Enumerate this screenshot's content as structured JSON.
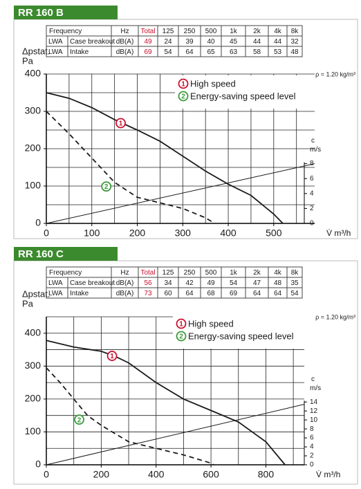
{
  "chart_data": [
    {
      "type": "line",
      "title": "RR 160 B",
      "y_label": "Δpstat.",
      "y_unit": "Pa",
      "x_label": "V̇ m³/h",
      "y2_label": "c",
      "y2_unit": "m/s",
      "annotation": "ρ = 1.20 kg/m³",
      "xlim": [
        0,
        590
      ],
      "xticks": [
        0,
        100,
        200,
        300,
        400,
        500
      ],
      "ylim": [
        0,
        400
      ],
      "yticks": [
        0,
        100,
        200,
        300,
        400
      ],
      "y2lim": [
        0,
        20
      ],
      "y2ticks": [
        0,
        2,
        4,
        6,
        8
      ],
      "grid": true,
      "series": [
        {
          "name": "High speed",
          "marker": "1",
          "marker_color": "#c8102e",
          "color": "#1a1a1a",
          "dash": false,
          "x": [
            0,
            50,
            100,
            150,
            200,
            250,
            300,
            350,
            400,
            450,
            500,
            520
          ],
          "values": [
            350,
            335,
            310,
            278,
            250,
            220,
            180,
            140,
            105,
            75,
            25,
            0
          ]
        },
        {
          "name": "Energy-saving speed level",
          "marker": "2",
          "marker_color": "#3a9a3a",
          "color": "#1a1a1a",
          "dash": true,
          "x": [
            0,
            50,
            100,
            150,
            200,
            250,
            300,
            350,
            370
          ],
          "values": [
            300,
            240,
            175,
            110,
            70,
            55,
            40,
            15,
            0
          ]
        },
        {
          "axis": "y2",
          "color": "#1a1a1a",
          "dash": false,
          "x": [
            0,
            590
          ],
          "values": [
            0,
            8
          ]
        }
      ]
    },
    {
      "type": "line",
      "title": "RR 160 C",
      "y_label": "Δpstat.",
      "y_unit": "Pa",
      "x_label": "V̇ m³/h",
      "y2_label": "c",
      "y2_unit": "m/s",
      "annotation": "ρ = 1.20 kg/m³",
      "xlim": [
        0,
        940
      ],
      "xticks": [
        0,
        200,
        400,
        600,
        800
      ],
      "ylim": [
        0,
        450
      ],
      "yticks": [
        0,
        100,
        200,
        300,
        400
      ],
      "y2lim": [
        0,
        33
      ],
      "y2ticks": [
        0,
        2,
        4,
        6,
        8,
        10,
        12,
        14
      ],
      "grid": true,
      "series": [
        {
          "name": "High speed",
          "marker": "1",
          "marker_color": "#c8102e",
          "color": "#1a1a1a",
          "dash": false,
          "x": [
            0,
            100,
            200,
            250,
            300,
            400,
            500,
            600,
            700,
            800,
            870
          ],
          "values": [
            378,
            358,
            345,
            330,
            310,
            250,
            200,
            165,
            130,
            70,
            0
          ]
        },
        {
          "name": "Energy-saving speed level",
          "marker": "2",
          "marker_color": "#3a9a3a",
          "color": "#1a1a1a",
          "dash": true,
          "x": [
            0,
            50,
            100,
            150,
            200,
            300,
            400,
            500,
            600,
            610
          ],
          "values": [
            295,
            250,
            200,
            150,
            120,
            70,
            50,
            30,
            5,
            0
          ]
        },
        {
          "axis": "y2",
          "color": "#1a1a1a",
          "dash": false,
          "x": [
            0,
            940
          ],
          "values": [
            0,
            13.5
          ]
        }
      ]
    }
  ],
  "tables": [
    {
      "header": [
        "Frequency",
        "Hz",
        "Total",
        "125",
        "250",
        "500",
        "1k",
        "2k",
        "4k",
        "8k"
      ],
      "rows": [
        [
          "LWA",
          "Case breakout",
          "dB(A)",
          49,
          24,
          39,
          40,
          45,
          44,
          44,
          32
        ],
        [
          "LWA",
          "Intake",
          "dB(A)",
          69,
          54,
          64,
          65,
          63,
          58,
          53,
          48
        ]
      ]
    },
    {
      "header": [
        "Frequency",
        "Hz",
        "Total",
        "125",
        "250",
        "500",
        "1k",
        "2k",
        "4k",
        "8k"
      ],
      "rows": [
        [
          "LWA",
          "Case breakout",
          "dB(A)",
          56,
          34,
          42,
          49,
          54,
          47,
          48,
          35
        ],
        [
          "LWA",
          "Intake",
          "dB(A)",
          73,
          60,
          64,
          68,
          69,
          64,
          64,
          54
        ]
      ]
    }
  ]
}
